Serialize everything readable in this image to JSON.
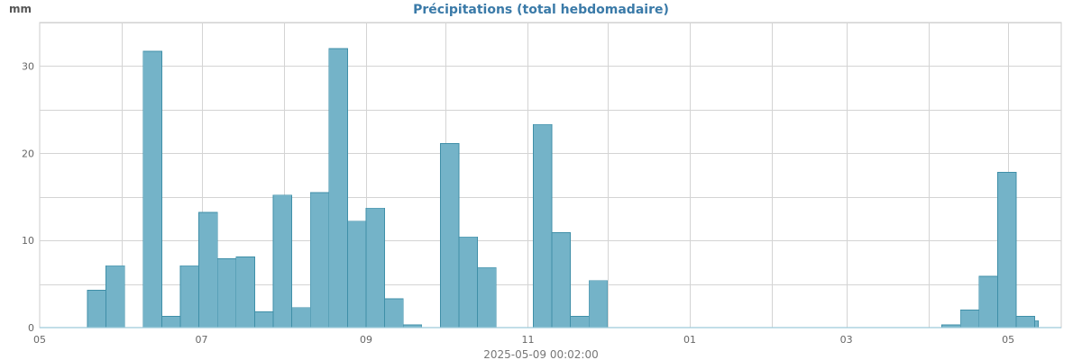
{
  "header": {
    "unit": "mm",
    "title": "Précipitations (total hebdomadaire)"
  },
  "footer": {
    "timestamp": "2025-05-09 00:02:00"
  },
  "colors": {
    "bar_fill": "#74b3c8",
    "bar_stroke": "#3f8fa8",
    "title": "#3a7aa8",
    "grid": "#d4d4d4"
  },
  "chart_data": {
    "type": "bar",
    "title": "Précipitations (total hebdomadaire)",
    "ylabel": "mm",
    "xlabel": "",
    "ylim": [
      0,
      35
    ],
    "yticks": [
      0,
      10,
      20,
      30
    ],
    "x_tick_labels": [
      {
        "date": "2024-05-01",
        "label": "05"
      },
      {
        "date": "2024-07-01",
        "label": "07"
      },
      {
        "date": "2024-09-01",
        "label": "09"
      },
      {
        "date": "2024-11-01",
        "label": "11"
      },
      {
        "date": "2025-01-01",
        "label": "01"
      },
      {
        "date": "2025-03-01",
        "label": "03"
      },
      {
        "date": "2025-05-01",
        "label": "05"
      }
    ],
    "xlim": [
      "2024-05-01",
      "2025-05-21"
    ],
    "grid": true,
    "legend": "none",
    "weeks": [
      "2024-05-19",
      "2024-05-26",
      "2024-06-02",
      "2024-06-09",
      "2024-06-16",
      "2024-06-23",
      "2024-06-30",
      "2024-07-07",
      "2024-07-14",
      "2024-07-21",
      "2024-07-28",
      "2024-08-04",
      "2024-08-11",
      "2024-08-18",
      "2024-08-25",
      "2024-09-01",
      "2024-09-08",
      "2024-09-15",
      "2024-09-22",
      "2024-09-29",
      "2024-10-06",
      "2024-10-13",
      "2024-10-20",
      "2024-10-27",
      "2024-11-03",
      "2024-11-10",
      "2024-11-17",
      "2024-11-24",
      "2024-12-01",
      "2024-12-08",
      "2024-12-15",
      "2024-12-22",
      "2024-12-29",
      "2025-01-05",
      "2025-01-12",
      "2025-01-19",
      "2025-01-26",
      "2025-02-02",
      "2025-02-09",
      "2025-02-16",
      "2025-02-23",
      "2025-03-02",
      "2025-03-09",
      "2025-03-16",
      "2025-03-23",
      "2025-03-30",
      "2025-04-06",
      "2025-04-13",
      "2025-04-20",
      "2025-04-27",
      "2025-05-04"
    ],
    "values": [
      4.3,
      7.1,
      0,
      31.7,
      1.3,
      7.1,
      13.2,
      7.9,
      8.1,
      1.8,
      15.2,
      2.3,
      15.5,
      32.0,
      12.2,
      13.7,
      3.3,
      0.3,
      0,
      21.1,
      10.4,
      6.9,
      0,
      0,
      23.3,
      10.9,
      1.3,
      5.4,
      0,
      0,
      0,
      0,
      0,
      0,
      0,
      0,
      0,
      0,
      0,
      0,
      0,
      0,
      0,
      0,
      0,
      0,
      0.3,
      2.0,
      5.9,
      17.8,
      1.3
    ],
    "partial_week": {
      "start": "2025-05-11",
      "value": 0.8
    }
  }
}
